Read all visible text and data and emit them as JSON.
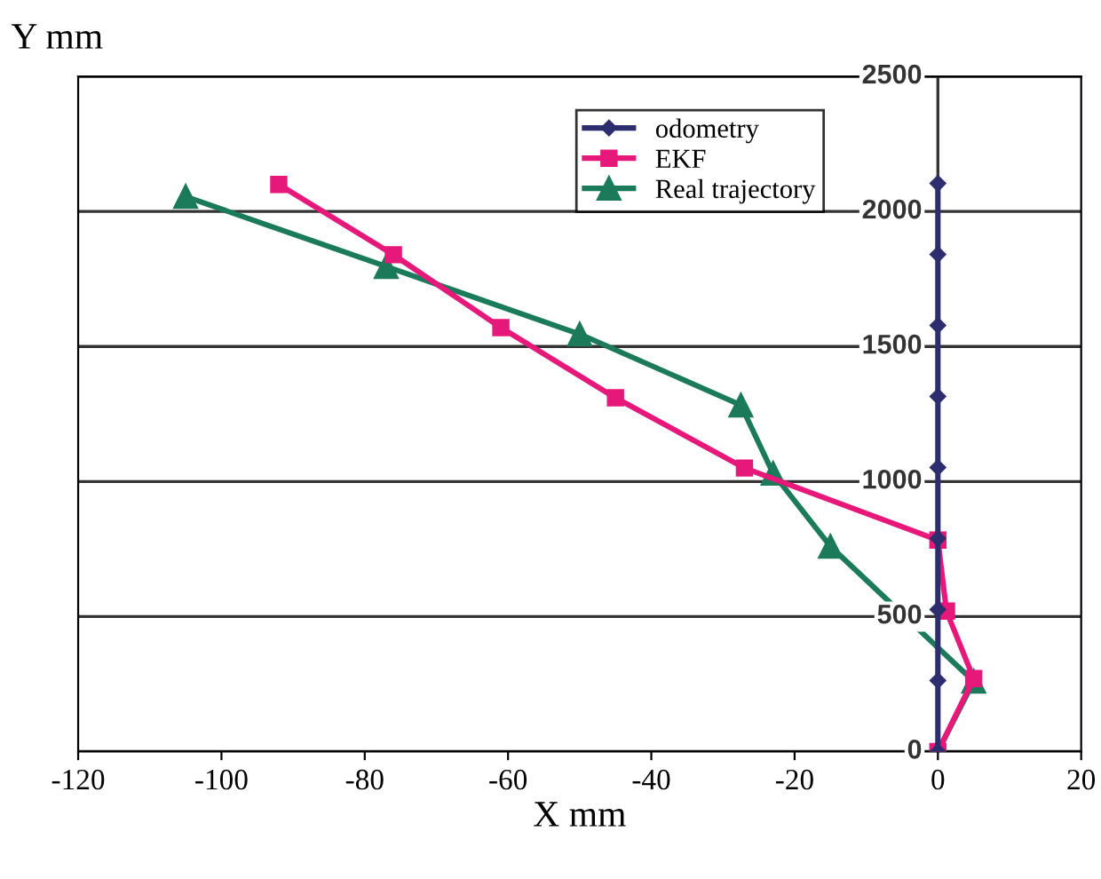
{
  "chart_data": {
    "type": "line",
    "xlabel": "X mm",
    "ylabel": "Y mm",
    "xlim": [
      -120,
      20
    ],
    "xticks": [
      -120,
      -100,
      -80,
      -60,
      -40,
      -20,
      0,
      20
    ],
    "ylim": [
      0,
      2500
    ],
    "yticks": [
      0,
      500,
      1000,
      1500,
      2000,
      2500
    ],
    "grid": "y",
    "legend": "top",
    "line_style": "solid",
    "series": [
      {
        "name": "odometry",
        "color": "#2e2e6e",
        "marker": "diamond",
        "x": [
          0,
          0,
          0,
          0,
          0,
          0,
          0,
          0,
          0
        ],
        "values": [
          0,
          263,
          526,
          789,
          1052,
          1315,
          1578,
          1841,
          2104
        ]
      },
      {
        "name": "EKF",
        "color": "#e6197a",
        "marker": "square",
        "x": [
          0,
          5,
          1.2,
          0,
          -27,
          -45,
          -61,
          -76,
          -92
        ],
        "values": [
          0,
          270,
          520,
          783,
          1050,
          1310,
          1570,
          1840,
          2100
        ]
      },
      {
        "name": "Real trajectory",
        "color": "#1a7a5a",
        "marker": "triangle",
        "x": [
          0,
          5,
          -15,
          -23,
          -27.5,
          -50,
          -77,
          -105
        ],
        "values": [
          0,
          260,
          760,
          1030,
          1283,
          1546,
          1796,
          2055
        ]
      }
    ]
  }
}
